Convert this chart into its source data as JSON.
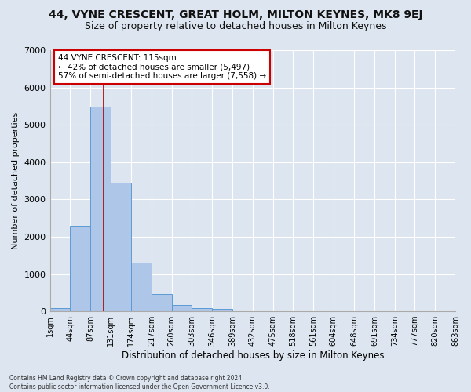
{
  "title": "44, VYNE CRESCENT, GREAT HOLM, MILTON KEYNES, MK8 9EJ",
  "subtitle": "Size of property relative to detached houses in Milton Keynes",
  "xlabel": "Distribution of detached houses by size in Milton Keynes",
  "ylabel": "Number of detached properties",
  "footnote1": "Contains HM Land Registry data © Crown copyright and database right 2024.",
  "footnote2": "Contains public sector information licensed under the Open Government Licence v3.0.",
  "annotation_title": "44 VYNE CRESCENT: 115sqm",
  "annotation_line2": "← 42% of detached houses are smaller (5,497)",
  "annotation_line3": "57% of semi-detached houses are larger (7,558) →",
  "bar_color": "#aec6e8",
  "bar_edge_color": "#5b9bd5",
  "bg_color": "#dde6f0",
  "grid_color": "#ffffff",
  "vline_color": "#aa0000",
  "vline_x": 115,
  "bin_edges": [
    1,
    44,
    87,
    131,
    174,
    217,
    260,
    303,
    346,
    389,
    432,
    475,
    518,
    561,
    604,
    648,
    691,
    734,
    777,
    820,
    863
  ],
  "bin_heights": [
    80,
    2290,
    5480,
    3450,
    1310,
    460,
    160,
    80,
    75,
    0,
    0,
    0,
    0,
    0,
    0,
    0,
    0,
    0,
    0,
    0
  ],
  "tick_labels": [
    "1sqm",
    "44sqm",
    "87sqm",
    "131sqm",
    "174sqm",
    "217sqm",
    "260sqm",
    "303sqm",
    "346sqm",
    "389sqm",
    "432sqm",
    "475sqm",
    "518sqm",
    "561sqm",
    "604sqm",
    "648sqm",
    "691sqm",
    "734sqm",
    "777sqm",
    "820sqm",
    "863sqm"
  ],
  "ylim": [
    0,
    7000
  ],
  "yticks": [
    0,
    1000,
    2000,
    3000,
    4000,
    5000,
    6000,
    7000
  ],
  "annotation_box_color": "#ffffff",
  "annotation_box_edge": "#cc0000",
  "title_fontsize": 10,
  "subtitle_fontsize": 9
}
